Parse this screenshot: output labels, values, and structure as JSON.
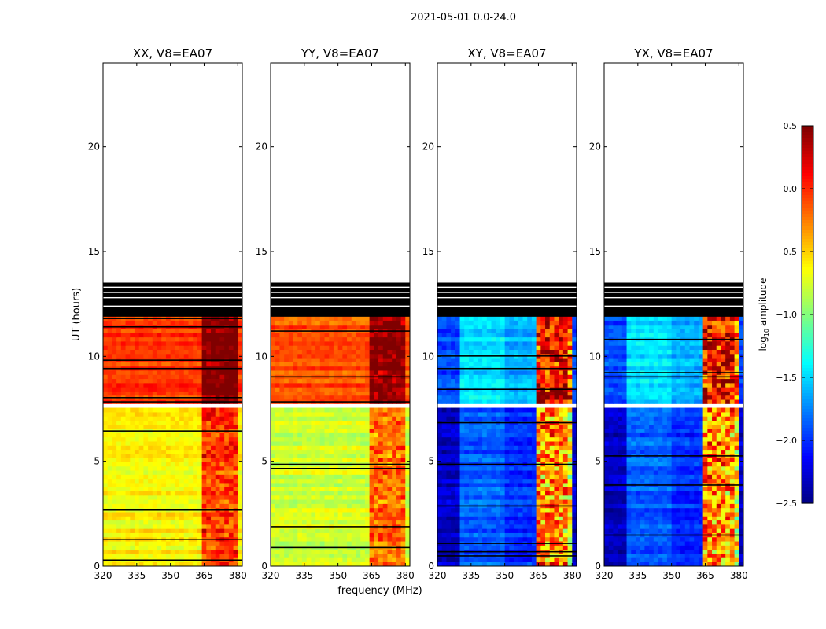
{
  "chart_data": {
    "type": "heatmap",
    "suptitle": "2021-05-01 0.0-24.0",
    "ylabel": "UT (hours)",
    "xlabel": "frequency (MHz)",
    "xlim": [
      320,
      382
    ],
    "ylim": [
      0,
      24
    ],
    "xticks": [
      320,
      335,
      350,
      365,
      380
    ],
    "yticks": [
      0,
      5,
      10,
      15,
      20
    ],
    "panels": [
      {
        "title": "XX, V8=EA07",
        "pol": "XX",
        "base": {
          "early": -0.6,
          "late": -0.05
        }
      },
      {
        "title": "YY, V8=EA07",
        "pol": "YY",
        "base": {
          "early": -0.75,
          "late": -0.1
        }
      },
      {
        "title": "XY, V8=EA07",
        "pol": "XY",
        "base": {
          "early": -2.0,
          "late": -1.6
        }
      },
      {
        "title": "YX, V8=EA07",
        "pol": "YX",
        "base": {
          "early": -2.0,
          "late": -1.6
        }
      }
    ],
    "data_time_range_hours": [
      0,
      13.5
    ],
    "flagged_block_hours": [
      12.0,
      13.5
    ],
    "gap_hours": [
      7.5,
      7.7
    ],
    "rfi_band_mhz": [
      363,
      380
    ],
    "colorbar": {
      "label_main": "log",
      "label_sub": "10",
      "label_tail": " amplitude",
      "min": -2.5,
      "max": 0.5,
      "ticks": [
        0.5,
        0.0,
        -0.5,
        -1.0,
        -1.5,
        -2.0,
        -2.5
      ],
      "tick_labels": [
        "0.5",
        "0.0",
        "−0.5",
        "−1.0",
        "−1.5",
        "−2.0",
        "−2.5"
      ],
      "colormap": "jet"
    }
  }
}
